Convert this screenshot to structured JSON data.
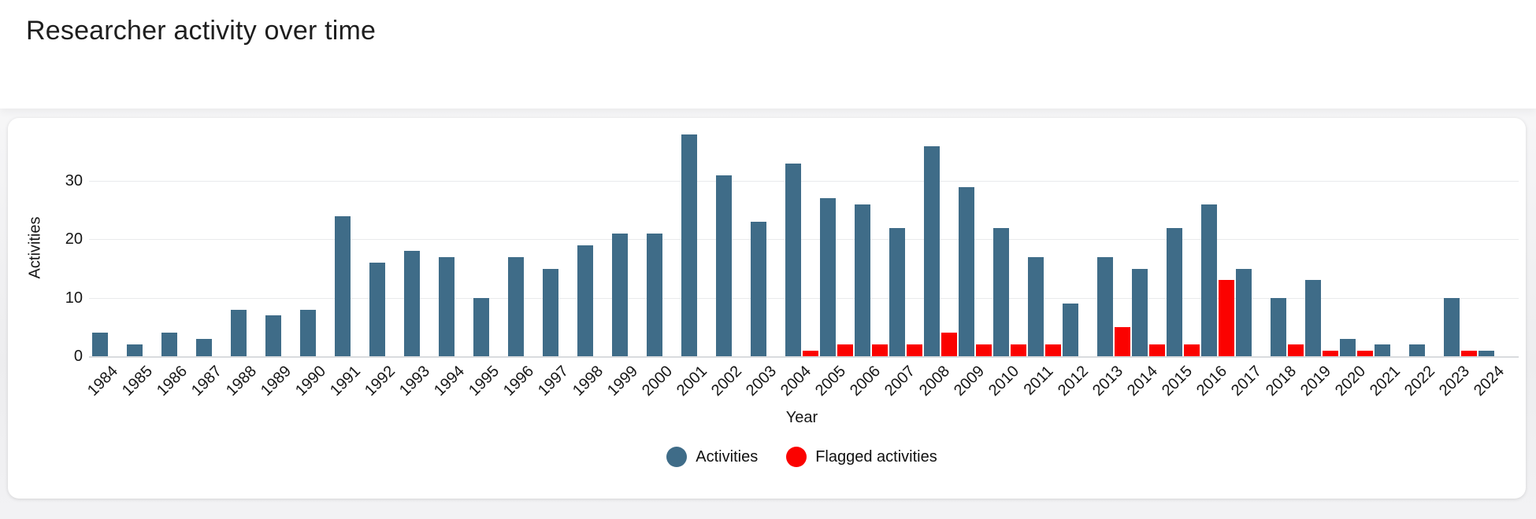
{
  "page": {
    "title": "Researcher activity over time"
  },
  "chart_data": {
    "type": "bar",
    "title": "Researcher activity over time",
    "xlabel": "Year",
    "ylabel": "Activities",
    "ylim": [
      0,
      38
    ],
    "yticks": [
      0,
      10,
      20,
      30
    ],
    "grid": true,
    "legend_position": "bottom",
    "bar_mode": "grouped",
    "categories": [
      "1984",
      "1985",
      "1986",
      "1987",
      "1988",
      "1989",
      "1990",
      "1991",
      "1992",
      "1993",
      "1994",
      "1995",
      "1996",
      "1997",
      "1998",
      "1999",
      "2000",
      "2001",
      "2002",
      "2003",
      "2004",
      "2005",
      "2006",
      "2007",
      "2008",
      "2009",
      "2010",
      "2011",
      "2012",
      "2013",
      "2014",
      "2015",
      "2016",
      "2017",
      "2018",
      "2019",
      "2020",
      "2021",
      "2022",
      "2023",
      "2024"
    ],
    "series": [
      {
        "name": "Activities",
        "color": "#3f6c88",
        "values": [
          4,
          2,
          4,
          3,
          8,
          7,
          8,
          24,
          16,
          18,
          17,
          10,
          17,
          15,
          19,
          21,
          21,
          38,
          31,
          23,
          33,
          27,
          26,
          22,
          36,
          29,
          22,
          17,
          9,
          17,
          15,
          22,
          26,
          15,
          10,
          13,
          3,
          2,
          2,
          10,
          1
        ]
      },
      {
        "name": "Flagged activities",
        "color": "#fb0200",
        "values": [
          0,
          0,
          0,
          0,
          0,
          0,
          0,
          0,
          0,
          0,
          0,
          0,
          0,
          0,
          0,
          0,
          0,
          0,
          0,
          0,
          1,
          2,
          2,
          2,
          4,
          2,
          2,
          2,
          0,
          5,
          2,
          2,
          13,
          0,
          2,
          1,
          1,
          0,
          0,
          1,
          0
        ]
      }
    ]
  }
}
